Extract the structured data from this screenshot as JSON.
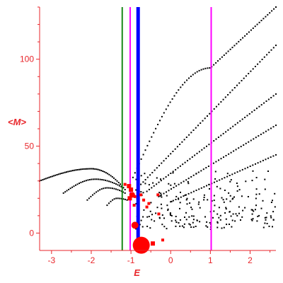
{
  "chart_data": {
    "type": "scatter",
    "xlabel": "E",
    "ylabel": "<M>",
    "xlim": [
      -3.3,
      2.65
    ],
    "ylim": [
      -10,
      130
    ],
    "xticks": [
      -3,
      -2,
      -1,
      0,
      1,
      2
    ],
    "xtick_labels": [
      "-3",
      "-2",
      "-1",
      "0",
      "1",
      "2"
    ],
    "yticks": [
      0,
      50,
      100
    ],
    "ytick_labels": [
      "0",
      "50",
      "100"
    ],
    "grid": false,
    "colors": {
      "axis": "#e8262b",
      "points": "#000000",
      "markers": "#ff0000",
      "green_line": "#1a8a1a",
      "magenta_line": "#ff00ff",
      "blue_line": "#0000ff"
    },
    "vertical_lines": [
      {
        "x": -1.22,
        "color": "#1a8a1a",
        "width": 2
      },
      {
        "x": -1.02,
        "color": "#ff00ff",
        "width": 2
      },
      {
        "x": -0.82,
        "color": "#0000ff",
        "width": 5
      },
      {
        "x": 1.02,
        "color": "#ff00ff",
        "width": 2
      }
    ],
    "curves": [
      {
        "x_start": -3.3,
        "x_end": -1.15,
        "n": 55,
        "y_expr": "arch",
        "peak_x": -2.0,
        "peak_y": 37,
        "y_start": 30,
        "y_end": 25
      },
      {
        "x_start": -2.7,
        "x_end": -1.2,
        "n": 35,
        "y_expr": "arch",
        "peak_x": -1.9,
        "peak_y": 31,
        "y_start": 23,
        "y_end": 26
      },
      {
        "x_start": -2.1,
        "x_end": -1.15,
        "n": 22,
        "y_expr": "arch",
        "peak_x": -1.6,
        "peak_y": 26,
        "y_start": 19,
        "y_end": 23
      },
      {
        "x_start": -1.6,
        "x_end": -1.1,
        "n": 12,
        "y_expr": "arch",
        "peak_x": -1.35,
        "peak_y": 20,
        "y_start": 16,
        "y_end": 19
      },
      {
        "x_start": -0.95,
        "x_end": 2.65,
        "n": 70,
        "y_expr": "upper",
        "x0": -0.95,
        "y0": 32,
        "x1": 1.0,
        "y1": 95,
        "x2": 2.65,
        "y2": 130
      },
      {
        "x_start": -0.75,
        "x_end": 2.65,
        "n": 60,
        "y_expr": "line",
        "y0": 28,
        "y1": 108
      },
      {
        "x_start": -0.6,
        "x_end": 2.65,
        "n": 55,
        "y_expr": "line",
        "y0": 24,
        "y1": 80
      },
      {
        "x_start": -0.3,
        "x_end": 2.65,
        "n": 48,
        "y_expr": "line",
        "y0": 21,
        "y1": 62
      },
      {
        "x_start": 0.0,
        "x_end": 2.65,
        "n": 42,
        "y_expr": "line",
        "y0": 18,
        "y1": 45
      }
    ],
    "scatter_cluster": {
      "x_min": -0.9,
      "x_max": 2.65,
      "y_min": 2,
      "y_max": 35,
      "n": 230,
      "seed": 7
    },
    "red_markers": [
      {
        "x": -1.05,
        "y": 27,
        "r": 3
      },
      {
        "x": -1.0,
        "y": 25,
        "r": 3
      },
      {
        "x": -0.97,
        "y": 22,
        "r": 4
      },
      {
        "x": -1.03,
        "y": 20,
        "r": 3
      },
      {
        "x": -0.9,
        "y": 21,
        "r": 2
      },
      {
        "x": -0.75,
        "y": 22,
        "r": 2
      },
      {
        "x": -0.68,
        "y": 19,
        "r": 2
      },
      {
        "x": -0.92,
        "y": 16,
        "r": 2
      },
      {
        "x": -0.6,
        "y": 15,
        "r": 2
      },
      {
        "x": -0.55,
        "y": 17,
        "r": 2
      },
      {
        "x": -0.32,
        "y": 22,
        "r": 2
      },
      {
        "x": -0.3,
        "y": 11,
        "r": 2
      },
      {
        "x": -1.15,
        "y": 28,
        "r": 2
      },
      {
        "x": -0.9,
        "y": 4.5,
        "r": 5
      },
      {
        "x": -0.74,
        "y": -7,
        "r": 12
      },
      {
        "x": -0.45,
        "y": -6,
        "r": 3
      },
      {
        "x": -0.2,
        "y": -4,
        "r": 2
      }
    ]
  }
}
